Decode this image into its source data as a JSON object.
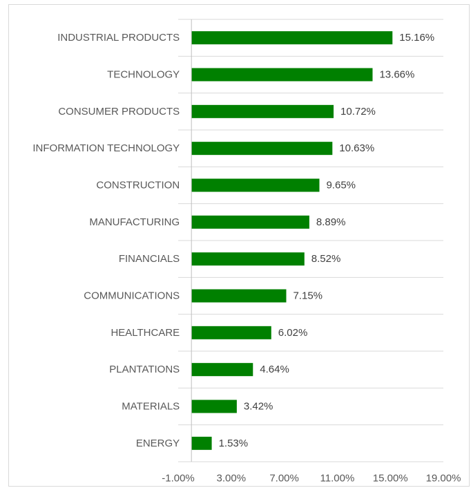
{
  "chart_data": {
    "type": "bar",
    "orientation": "horizontal",
    "categories": [
      "INDUSTRIAL PRODUCTS",
      "TECHNOLOGY",
      "CONSUMER PRODUCTS",
      "INFORMATION TECHNOLOGY",
      "CONSTRUCTION",
      "MANUFACTURING",
      "FINANCIALS",
      "COMMUNICATIONS",
      "HEALTHCARE",
      "PLANTATIONS",
      "MATERIALS",
      "ENERGY"
    ],
    "values": [
      15.16,
      13.66,
      10.72,
      10.63,
      9.65,
      8.89,
      8.52,
      7.15,
      6.02,
      4.64,
      3.42,
      1.53
    ],
    "value_labels": [
      "15.16%",
      "13.66%",
      "10.72%",
      "10.63%",
      "9.65%",
      "8.89%",
      "8.52%",
      "7.15%",
      "6.02%",
      "4.64%",
      "3.42%",
      "1.53%"
    ],
    "x_ticks": [
      -1,
      3,
      7,
      11,
      15,
      19
    ],
    "x_tick_labels": [
      "-1.00%",
      "3.00%",
      "7.00%",
      "11.00%",
      "15.00%",
      "19.00%"
    ],
    "xlim": [
      -1,
      19
    ],
    "title": "",
    "xlabel": "",
    "ylabel": "",
    "bar_color": "#008000",
    "grid": "horizontal separators between categories",
    "legend": "none"
  }
}
